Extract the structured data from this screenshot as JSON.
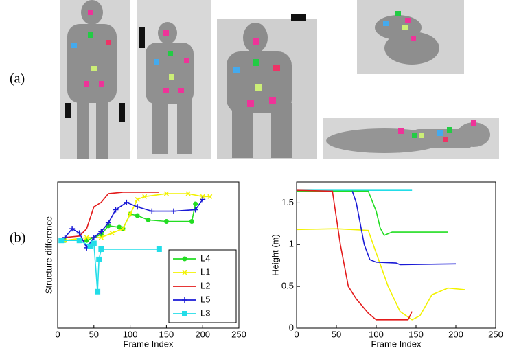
{
  "figure_labels": [
    "(a)",
    "(b)"
  ],
  "chart_data": [
    {
      "type": "line",
      "xlabel": "Frame Index",
      "ylabel": "Structure difference",
      "xlim": [
        0,
        250
      ],
      "xticks": [
        0,
        50,
        100,
        150,
        200,
        250
      ],
      "ylim": [
        0,
        1
      ],
      "legend": "lower-right",
      "series": [
        {
          "name": "L4",
          "color": "#22dd22",
          "marker": "circle",
          "x": [
            10,
            40,
            60,
            70,
            85,
            90,
            100,
            110,
            125,
            150,
            185,
            190
          ],
          "values": [
            0.6,
            0.6,
            0.64,
            0.7,
            0.69,
            0.68,
            0.78,
            0.77,
            0.74,
            0.73,
            0.73,
            0.85
          ]
        },
        {
          "name": "L1",
          "color": "#f2f200",
          "marker": "x",
          "x": [
            10,
            40,
            60,
            75,
            90,
            100,
            110,
            120,
            150,
            180,
            200,
            210
          ],
          "values": [
            0.6,
            0.62,
            0.62,
            0.65,
            0.68,
            0.78,
            0.88,
            0.9,
            0.92,
            0.92,
            0.9,
            0.9
          ]
        },
        {
          "name": "L2",
          "color": "#e31a1a",
          "marker": "none",
          "x": [
            10,
            30,
            40,
            50,
            60,
            70,
            90,
            140
          ],
          "values": [
            0.62,
            0.63,
            0.68,
            0.83,
            0.86,
            0.92,
            0.93,
            0.93
          ]
        },
        {
          "name": "L5",
          "color": "#1a1ad6",
          "marker": "plus",
          "x": [
            10,
            20,
            30,
            40,
            50,
            60,
            70,
            80,
            95,
            110,
            130,
            160,
            190,
            200
          ],
          "values": [
            0.62,
            0.68,
            0.65,
            0.55,
            0.62,
            0.66,
            0.72,
            0.81,
            0.86,
            0.83,
            0.8,
            0.8,
            0.81,
            0.88
          ]
        },
        {
          "name": "L3",
          "color": "#22dde8",
          "marker": "square",
          "x": [
            5,
            30,
            45,
            50,
            55,
            57,
            60,
            140
          ],
          "values": [
            0.6,
            0.6,
            0.56,
            0.58,
            0.25,
            0.47,
            0.54,
            0.54
          ]
        }
      ]
    },
    {
      "type": "line",
      "xlabel": "Frame Index",
      "ylabel": "Height (m)",
      "xlim": [
        0,
        250
      ],
      "xticks": [
        0,
        50,
        100,
        150,
        200,
        250
      ],
      "ylim": [
        0,
        1.75
      ],
      "yticks": [
        0,
        0.5,
        1,
        1.5
      ],
      "series": [
        {
          "color": "#22dde8",
          "x": [
            0,
            145
          ],
          "values": [
            1.65,
            1.65
          ]
        },
        {
          "color": "#22dd22",
          "x": [
            0,
            90,
            100,
            105,
            110,
            120,
            190
          ],
          "values": [
            1.64,
            1.64,
            1.4,
            1.2,
            1.11,
            1.15,
            1.15
          ]
        },
        {
          "color": "#f2f200",
          "x": [
            0,
            50,
            90,
            100,
            115,
            130,
            145,
            155,
            170,
            190,
            212
          ],
          "values": [
            1.18,
            1.19,
            1.17,
            0.9,
            0.5,
            0.2,
            0.1,
            0.15,
            0.4,
            0.48,
            0.46
          ]
        },
        {
          "color": "#e31a1a",
          "x": [
            0,
            45,
            55,
            65,
            75,
            90,
            100,
            140,
            145
          ],
          "values": [
            1.65,
            1.64,
            1.0,
            0.5,
            0.35,
            0.18,
            0.1,
            0.1,
            0.2
          ]
        },
        {
          "color": "#1a1ad6",
          "x": [
            70,
            75,
            85,
            92,
            100,
            125,
            130,
            200
          ],
          "values": [
            1.64,
            1.5,
            1.0,
            0.82,
            0.79,
            0.78,
            0.76,
            0.77
          ]
        }
      ]
    }
  ]
}
